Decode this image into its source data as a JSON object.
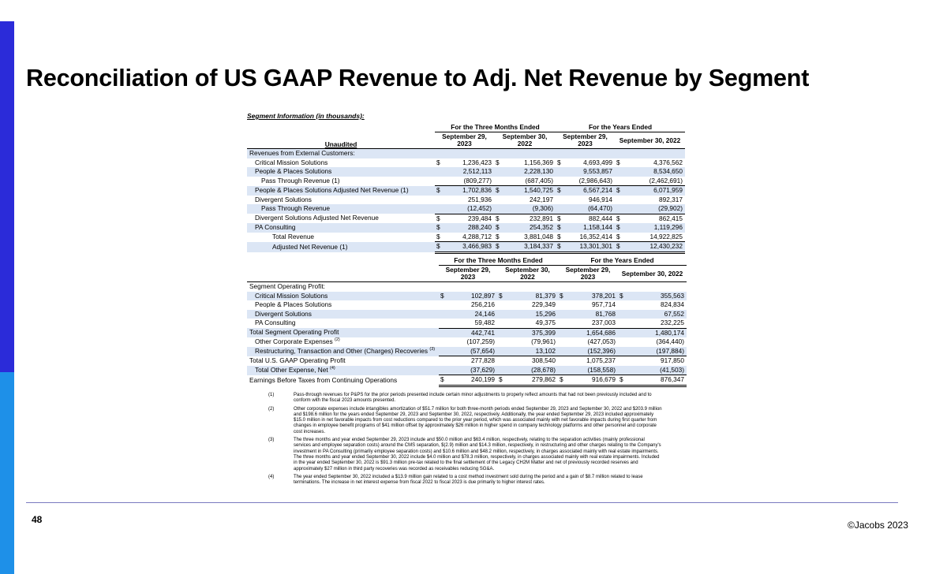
{
  "title": "Reconciliation of US GAAP Revenue to Adj. Net Revenue by Segment",
  "page_number": "48",
  "copyright": "©Jacobs 2023",
  "segment_caption": "Segment Information (in thousands):",
  "table1": {
    "group_three_months": "For the Three Months Ended",
    "group_years": "For the Years Ended",
    "col_a": "September 29, 2023",
    "col_b": "September 30, 2022",
    "col_c": "September 29, 2023",
    "col_d": "September 30, 2022",
    "unaudited": "Unaudited",
    "rows": [
      {
        "label": "Revenues from External Customers:",
        "d1": "",
        "v1": "",
        "d2": "",
        "v2": "",
        "d3": "",
        "v3": "",
        "d4": "",
        "v4": ""
      },
      {
        "label": "Critical Mission Solutions",
        "d1": "$",
        "v1": "1,236,423",
        "d2": "$",
        "v2": "1,156,369",
        "d3": "$",
        "v3": "4,693,499",
        "d4": "$",
        "v4": "4,376,562"
      },
      {
        "label": "People & Places Solutions",
        "d1": "",
        "v1": "2,512,113",
        "d2": "",
        "v2": "2,228,130",
        "d3": "",
        "v3": "9,553,857",
        "d4": "",
        "v4": "8,534,650"
      },
      {
        "label": "Pass Through Revenue (1)",
        "d1": "",
        "v1": "(809,277)",
        "d2": "",
        "v2": "(687,405)",
        "d3": "",
        "v3": "(2,986,643)",
        "d4": "",
        "v4": "(2,462,691)"
      },
      {
        "label": "People & Places Solutions Adjusted Net Revenue (1)",
        "d1": "$",
        "v1": "1,702,836",
        "d2": "$",
        "v2": "1,540,725",
        "d3": "$",
        "v3": "6,567,214",
        "d4": "$",
        "v4": "6,071,959"
      },
      {
        "label": "Divergent Solutions",
        "d1": "",
        "v1": "251,936",
        "d2": "",
        "v2": "242,197",
        "d3": "",
        "v3": "946,914",
        "d4": "",
        "v4": "892,317"
      },
      {
        "label": "Pass Through Revenue",
        "d1": "",
        "v1": "(12,452)",
        "d2": "",
        "v2": "(9,306)",
        "d3": "",
        "v3": "(64,470)",
        "d4": "",
        "v4": "(29,902)"
      },
      {
        "label": "Divergent Solutions Adjusted Net Revenue",
        "d1": "$",
        "v1": "239,484",
        "d2": "$",
        "v2": "232,891",
        "d3": "$",
        "v3": "882,444",
        "d4": "$",
        "v4": "862,415"
      },
      {
        "label": "PA Consulting",
        "d1": "$",
        "v1": "288,240",
        "d2": "$",
        "v2": "254,352",
        "d3": "$",
        "v3": "1,158,144",
        "d4": "$",
        "v4": "1,119,296"
      },
      {
        "label": "Total Revenue",
        "d1": "$",
        "v1": "4,288,712",
        "d2": "$",
        "v2": "3,881,048",
        "d3": "$",
        "v3": "16,352,414",
        "d4": "$",
        "v4": "14,922,825"
      },
      {
        "label": "Adjusted Net Revenue (1)",
        "d1": "$",
        "v1": "3,466,983",
        "d2": "$",
        "v2": "3,184,337",
        "d3": "$",
        "v3": "13,301,301",
        "d4": "$",
        "v4": "12,430,232"
      }
    ]
  },
  "table2": {
    "group_three_months": "For the Three Months Ended",
    "group_years": "For the Years Ended",
    "col_a": "September 29, 2023",
    "col_b": "September 30, 2022",
    "col_c": "September 29, 2023",
    "col_d": "September 30, 2022",
    "rows": [
      {
        "label": "Segment Operating Profit:",
        "sup": "",
        "d1": "",
        "v1": "",
        "d2": "",
        "v2": "",
        "d3": "",
        "v3": "",
        "d4": "",
        "v4": ""
      },
      {
        "label": "Critical Mission Solutions",
        "sup": "",
        "d1": "$",
        "v1": "102,897",
        "d2": "$",
        "v2": "81,379",
        "d3": "$",
        "v3": "378,201",
        "d4": "$",
        "v4": "355,563"
      },
      {
        "label": "People & Places Solutions",
        "sup": "",
        "d1": "",
        "v1": "256,216",
        "d2": "",
        "v2": "229,349",
        "d3": "",
        "v3": "957,714",
        "d4": "",
        "v4": "824,834"
      },
      {
        "label": "Divergent Solutions",
        "sup": "",
        "d1": "",
        "v1": "24,146",
        "d2": "",
        "v2": "15,296",
        "d3": "",
        "v3": "81,768",
        "d4": "",
        "v4": "67,552"
      },
      {
        "label": "PA Consulting",
        "sup": "",
        "d1": "",
        "v1": "59,482",
        "d2": "",
        "v2": "49,375",
        "d3": "",
        "v3": "237,003",
        "d4": "",
        "v4": "232,225"
      },
      {
        "label": "Total Segment Operating Profit",
        "sup": "",
        "d1": "",
        "v1": "442,741",
        "d2": "",
        "v2": "375,399",
        "d3": "",
        "v3": "1,654,686",
        "d4": "",
        "v4": "1,480,174"
      },
      {
        "label": "Other Corporate Expenses",
        "sup": "(2)",
        "d1": "",
        "v1": "(107,259)",
        "d2": "",
        "v2": "(79,961)",
        "d3": "",
        "v3": "(427,053)",
        "d4": "",
        "v4": "(364,440)"
      },
      {
        "label": "Restructuring, Transaction and Other (Charges) Recoveries",
        "sup": "(3)",
        "d1": "",
        "v1": "(57,654)",
        "d2": "",
        "v2": "13,102",
        "d3": "",
        "v3": "(152,396)",
        "d4": "",
        "v4": "(197,884)"
      },
      {
        "label": "Total U.S. GAAP Operating Profit",
        "sup": "",
        "d1": "",
        "v1": "277,828",
        "d2": "",
        "v2": "308,540",
        "d3": "",
        "v3": "1,075,237",
        "d4": "",
        "v4": "917,850"
      },
      {
        "label": "Total Other Expense, Net",
        "sup": "(4)",
        "d1": "",
        "v1": "(37,629)",
        "d2": "",
        "v2": "(28,678)",
        "d3": "",
        "v3": "(158,558)",
        "d4": "",
        "v4": "(41,503)"
      },
      {
        "label": "Earnings Before Taxes from Continuing Operations",
        "sup": "",
        "d1": "$",
        "v1": "240,199",
        "d2": "$",
        "v2": "279,862",
        "d3": "$",
        "v3": "916,679",
        "d4": "$",
        "v4": "876,347"
      }
    ]
  },
  "footnotes": [
    {
      "key": "(1)",
      "text": "Pass-through revenues for P&PS for the prior periods presented include certain minor adjustments to properly reflect amounts that had not been previously included and to conform with the fiscal 2023 amounts presented."
    },
    {
      "key": "(2)",
      "text": "Other corporate expenses include intangibles amortization of $51.7 million for both three-month periods ended September 29, 2023 and September 30, 2022 and $203.9 million and $198.6 million for the years ended September 29, 2023 and September 30, 2022, respectively. Additionally, the year ended September 29, 2023 included approximately $15.0 million in net favorable impacts from cost reductions compared to the prior year period, which was associated mainly with net favorable impacts during first quarter from changes in employee benefit programs of $41 million offset by approximately $26 million in higher spend in company technology platforms and other personnel and corporate cost increases."
    },
    {
      "key": "(3)",
      "text": "The three months and year ended September 29, 2023 include and $50.0 million and $63.4 million, respectively, relating to the separation activities (mainly professional services and employee separation costs) around the CMS separation, $(2.9) million and $14.3 million, respectively, in restructuring and other charges relating to the Company's investment in PA Consulting (primarily employee separation costs) and $10.6 million and $48.2 million, respectively, in charges associated mainly with real estate impairments. The three months and year ended September 30, 2022 include $4.0 million and $78.3 million, respectively, in charges associated mainly with real estate impairments. Included in the year ended September 30, 2022 is $91.3 million pre-tax related to the final settlement of the Legacy CH2M Matter and net of previously recorded reserves and approximately $27 million in third party recoveries was recorded as receivables reducing SG&A."
    },
    {
      "key": "(4)",
      "text": "The year ended September 30, 2022 included a $13.9 million gain related to a cost method investment sold during the period and a gain of $8.7 million related to lease terminations. The increase in net interest expense from fiscal 2022 to fiscal 2023 is due primarily to higher interest rates."
    }
  ]
}
